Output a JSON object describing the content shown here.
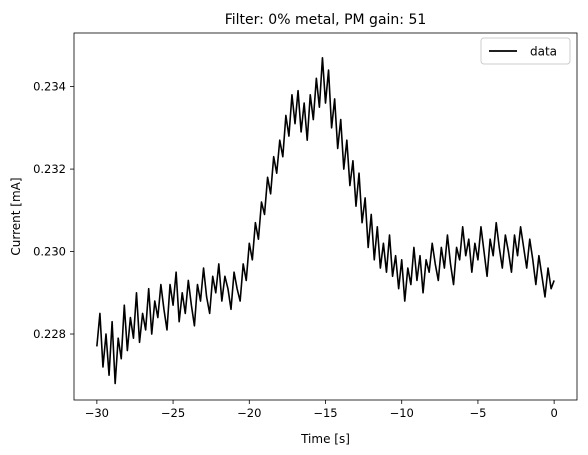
{
  "chart_data": {
    "type": "line",
    "title": "Filter: 0% metal, PM gain: 51",
    "xlabel": "Time [s]",
    "ylabel": "Current [mA]",
    "xlim": [
      -31.5,
      1.5
    ],
    "ylim": [
      0.2264,
      0.2353
    ],
    "xticks": [
      -30,
      -25,
      -20,
      -15,
      -10,
      -5,
      0
    ],
    "xtick_labels": [
      "−30",
      "−25",
      "−20",
      "−15",
      "−10",
      "−5",
      "0"
    ],
    "yticks": [
      0.228,
      0.23,
      0.232,
      0.234
    ],
    "ytick_labels": [
      "0.228",
      "0.230",
      "0.232",
      "0.234"
    ],
    "grid": false,
    "legend": {
      "placement": "top-right"
    },
    "series": [
      {
        "name": "data",
        "color": "#000000",
        "x": [
          -30.0,
          -29.8,
          -29.6,
          -29.4,
          -29.2,
          -29.0,
          -28.8,
          -28.6,
          -28.4,
          -28.2,
          -28.0,
          -27.8,
          -27.6,
          -27.4,
          -27.2,
          -27.0,
          -26.8,
          -26.6,
          -26.4,
          -26.2,
          -26.0,
          -25.8,
          -25.6,
          -25.4,
          -25.2,
          -25.0,
          -24.8,
          -24.6,
          -24.4,
          -24.2,
          -24.0,
          -23.8,
          -23.6,
          -23.4,
          -23.2,
          -23.0,
          -22.8,
          -22.6,
          -22.4,
          -22.2,
          -22.0,
          -21.8,
          -21.6,
          -21.4,
          -21.2,
          -21.0,
          -20.8,
          -20.6,
          -20.4,
          -20.2,
          -20.0,
          -19.8,
          -19.6,
          -19.4,
          -19.2,
          -19.0,
          -18.8,
          -18.6,
          -18.4,
          -18.2,
          -18.0,
          -17.8,
          -17.6,
          -17.4,
          -17.2,
          -17.0,
          -16.8,
          -16.6,
          -16.4,
          -16.2,
          -16.0,
          -15.8,
          -15.6,
          -15.4,
          -15.2,
          -15.0,
          -14.8,
          -14.6,
          -14.4,
          -14.2,
          -14.0,
          -13.8,
          -13.6,
          -13.4,
          -13.2,
          -13.0,
          -12.8,
          -12.6,
          -12.4,
          -12.2,
          -12.0,
          -11.8,
          -11.6,
          -11.4,
          -11.2,
          -11.0,
          -10.8,
          -10.6,
          -10.4,
          -10.2,
          -10.0,
          -9.8,
          -9.6,
          -9.4,
          -9.2,
          -9.0,
          -8.8,
          -8.6,
          -8.4,
          -8.2,
          -8.0,
          -7.8,
          -7.6,
          -7.4,
          -7.2,
          -7.0,
          -6.8,
          -6.6,
          -6.4,
          -6.2,
          -6.0,
          -5.8,
          -5.6,
          -5.4,
          -5.2,
          -5.0,
          -4.8,
          -4.6,
          -4.4,
          -4.2,
          -4.0,
          -3.8,
          -3.6,
          -3.4,
          -3.2,
          -3.0,
          -2.8,
          -2.6,
          -2.4,
          -2.2,
          -2.0,
          -1.8,
          -1.6,
          -1.4,
          -1.2,
          -1.0,
          -0.8,
          -0.6,
          -0.4,
          -0.2,
          0.0
        ],
        "y": [
          0.2277,
          0.2285,
          0.2272,
          0.228,
          0.227,
          0.2283,
          0.2268,
          0.2279,
          0.2274,
          0.2287,
          0.2276,
          0.2284,
          0.2279,
          0.229,
          0.2278,
          0.2285,
          0.2281,
          0.2291,
          0.228,
          0.2288,
          0.2284,
          0.2292,
          0.2286,
          0.2281,
          0.2292,
          0.2287,
          0.2295,
          0.2283,
          0.229,
          0.2285,
          0.2293,
          0.2287,
          0.2282,
          0.2292,
          0.2288,
          0.2296,
          0.2289,
          0.2285,
          0.2294,
          0.229,
          0.2297,
          0.2288,
          0.2294,
          0.2291,
          0.2286,
          0.2295,
          0.2291,
          0.2288,
          0.2297,
          0.2293,
          0.2302,
          0.2298,
          0.2307,
          0.2303,
          0.2312,
          0.2309,
          0.2318,
          0.2314,
          0.2323,
          0.2319,
          0.2327,
          0.2323,
          0.2333,
          0.2328,
          0.2338,
          0.2331,
          0.2339,
          0.2329,
          0.2336,
          0.2327,
          0.2338,
          0.2332,
          0.2342,
          0.2335,
          0.2347,
          0.2336,
          0.2344,
          0.233,
          0.2337,
          0.2325,
          0.2332,
          0.232,
          0.2327,
          0.2316,
          0.2322,
          0.2311,
          0.2319,
          0.2307,
          0.2313,
          0.2301,
          0.2309,
          0.2298,
          0.2306,
          0.2296,
          0.2302,
          0.2295,
          0.2304,
          0.2294,
          0.2299,
          0.2291,
          0.2298,
          0.2288,
          0.2296,
          0.2292,
          0.2301,
          0.2293,
          0.2299,
          0.229,
          0.2298,
          0.2295,
          0.2302,
          0.2297,
          0.2293,
          0.2301,
          0.2296,
          0.2304,
          0.2297,
          0.2292,
          0.2301,
          0.2298,
          0.2306,
          0.2299,
          0.2303,
          0.2295,
          0.2302,
          0.2298,
          0.2306,
          0.23,
          0.2294,
          0.2303,
          0.2299,
          0.2307,
          0.2301,
          0.2296,
          0.2304,
          0.23,
          0.2295,
          0.2304,
          0.2299,
          0.2306,
          0.2301,
          0.2296,
          0.2303,
          0.2298,
          0.2292,
          0.2299,
          0.2294,
          0.2289,
          0.2296,
          0.2291,
          0.2293
        ]
      }
    ]
  }
}
